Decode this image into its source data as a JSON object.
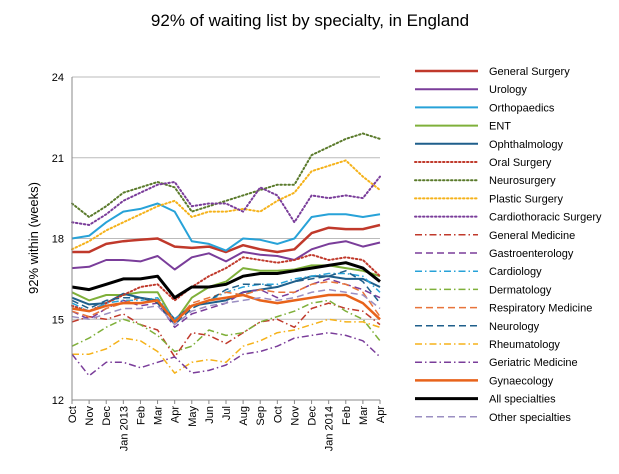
{
  "chart_data": {
    "type": "line",
    "title": "92% of waiting list by specialty, in England",
    "ylabel": "92% within (weeks)",
    "xlabel": "",
    "ylim": [
      12,
      24
    ],
    "yticks": [
      "12",
      "15",
      "18",
      "21",
      "24"
    ],
    "grid": true,
    "legend_position": "right",
    "categories": [
      "Oct",
      "Nov",
      "Dec",
      "Jan 2013",
      "Feb",
      "Mar",
      "Apr",
      "May",
      "Jun",
      "Jul",
      "Aug",
      "Sep",
      "Oct",
      "Nov",
      "Dec",
      "Jan 2014",
      "Feb",
      "Mar",
      "Apr"
    ],
    "series": [
      {
        "name": "General Surgery",
        "color": "#c0392b",
        "dash": "solid",
        "width": 2.5,
        "values": [
          17.5,
          17.5,
          17.8,
          17.9,
          17.95,
          18.0,
          17.7,
          17.65,
          17.7,
          17.5,
          17.75,
          17.6,
          17.5,
          17.6,
          18.2,
          18.4,
          18.35,
          18.35,
          18.5
        ]
      },
      {
        "name": "Urology",
        "color": "#7a3d9a",
        "dash": "solid",
        "width": 2,
        "values": [
          16.9,
          16.95,
          17.2,
          17.2,
          17.15,
          17.35,
          16.85,
          17.3,
          17.45,
          17.15,
          17.5,
          17.4,
          17.35,
          17.2,
          17.6,
          17.8,
          17.9,
          17.7,
          17.85
        ]
      },
      {
        "name": "Orthopaedics",
        "color": "#27a2d8",
        "dash": "solid",
        "width": 2,
        "values": [
          18.0,
          18.1,
          18.6,
          19.0,
          19.1,
          19.3,
          19.0,
          17.9,
          17.8,
          17.55,
          18.0,
          17.95,
          17.8,
          18.0,
          18.8,
          18.9,
          18.9,
          18.8,
          18.9
        ]
      },
      {
        "name": "ENT",
        "color": "#7fb03a",
        "dash": "solid",
        "width": 2,
        "values": [
          16.0,
          15.7,
          15.9,
          15.9,
          16.0,
          16.0,
          14.9,
          15.8,
          16.2,
          16.4,
          16.9,
          16.8,
          16.8,
          16.85,
          17.0,
          17.0,
          16.9,
          16.8,
          16.6
        ]
      },
      {
        "name": "Ophthalmology",
        "color": "#1f5f8b",
        "dash": "solid",
        "width": 2,
        "values": [
          15.8,
          15.55,
          15.6,
          15.95,
          15.8,
          15.7,
          15.0,
          15.5,
          15.6,
          15.7,
          16.0,
          16.1,
          16.2,
          16.4,
          16.6,
          16.6,
          16.5,
          16.5,
          16.2
        ]
      },
      {
        "name": "Oral Surgery",
        "color": "#c0392b",
        "dash": "dot",
        "width": 2,
        "values": [
          15.5,
          15.3,
          15.6,
          15.9,
          16.2,
          16.3,
          15.7,
          16.2,
          16.6,
          16.9,
          17.3,
          17.2,
          17.1,
          17.2,
          17.4,
          17.2,
          17.3,
          17.2,
          16.6
        ]
      },
      {
        "name": "Neurosurgery",
        "color": "#5a7a2b",
        "dash": "dot",
        "width": 2,
        "values": [
          19.3,
          18.8,
          19.2,
          19.7,
          19.9,
          20.1,
          19.9,
          19.0,
          19.2,
          19.4,
          19.6,
          19.8,
          20.0,
          20.0,
          21.1,
          21.4,
          21.7,
          21.9,
          21.7
        ]
      },
      {
        "name": "Plastic Surgery",
        "color": "#f5b21a",
        "dash": "dot",
        "width": 2,
        "values": [
          17.6,
          17.9,
          18.3,
          18.6,
          18.9,
          19.2,
          19.4,
          18.8,
          19.0,
          19.0,
          19.1,
          19.0,
          19.4,
          19.7,
          20.5,
          20.7,
          20.9,
          20.3,
          19.8
        ]
      },
      {
        "name": "Cardiothoracic Surgery",
        "color": "#7a3d9a",
        "dash": "dot",
        "width": 2,
        "values": [
          18.6,
          18.5,
          18.9,
          19.4,
          19.7,
          20.0,
          20.1,
          19.2,
          19.3,
          19.3,
          19.0,
          19.9,
          19.6,
          18.6,
          19.6,
          19.5,
          19.6,
          19.5,
          20.3
        ]
      },
      {
        "name": "General Medicine",
        "color": "#c0392b",
        "dash": "dashdot",
        "width": 1.5,
        "values": [
          14.9,
          15.1,
          15.0,
          15.2,
          14.8,
          14.6,
          13.6,
          14.5,
          14.4,
          14.1,
          14.5,
          14.9,
          15.0,
          14.7,
          15.4,
          15.6,
          15.4,
          15.3,
          14.8
        ]
      },
      {
        "name": "Gastroenterology",
        "color": "#7a3d9a",
        "dash": "longdash",
        "width": 1.5,
        "values": [
          15.3,
          15.0,
          15.4,
          15.7,
          15.5,
          15.6,
          14.7,
          15.2,
          15.4,
          15.6,
          16.0,
          16.1,
          15.8,
          16.0,
          16.3,
          16.5,
          16.3,
          16.1,
          15.8
        ]
      },
      {
        "name": "Cardiology",
        "color": "#27a2d8",
        "dash": "dashdot",
        "width": 1.5,
        "values": [
          15.6,
          15.3,
          15.6,
          15.7,
          15.7,
          15.8,
          15.0,
          15.5,
          15.7,
          16.0,
          16.2,
          16.3,
          16.3,
          16.5,
          16.6,
          16.7,
          16.7,
          16.6,
          16.0
        ]
      },
      {
        "name": "Dermatology",
        "color": "#7fb03a",
        "dash": "dashdot",
        "width": 1.5,
        "values": [
          14.0,
          14.3,
          14.7,
          15.0,
          14.8,
          14.4,
          13.8,
          14.0,
          14.6,
          14.4,
          14.5,
          14.9,
          15.1,
          15.3,
          15.6,
          15.7,
          15.3,
          15.0,
          14.2
        ]
      },
      {
        "name": "Respiratory Medicine",
        "color": "#e8743b",
        "dash": "longdash",
        "width": 1.5,
        "values": [
          15.3,
          15.1,
          15.4,
          15.6,
          15.8,
          15.6,
          14.9,
          15.6,
          15.8,
          16.0,
          15.9,
          16.1,
          16.0,
          16.0,
          16.3,
          16.4,
          16.3,
          16.0,
          15.1
        ]
      },
      {
        "name": "Neurology",
        "color": "#1f5f8b",
        "dash": "longdash",
        "width": 1.5,
        "values": [
          15.7,
          15.4,
          15.7,
          15.8,
          15.8,
          15.6,
          14.8,
          15.4,
          15.7,
          16.1,
          16.3,
          16.3,
          16.2,
          16.4,
          16.5,
          16.6,
          16.8,
          16.4,
          15.6
        ]
      },
      {
        "name": "Rheumatology",
        "color": "#f5b21a",
        "dash": "dashdot",
        "width": 1.5,
        "values": [
          13.7,
          13.7,
          13.9,
          14.3,
          14.2,
          13.8,
          13.0,
          13.4,
          13.5,
          13.4,
          14.0,
          14.2,
          14.5,
          14.6,
          14.8,
          15.0,
          14.9,
          14.9,
          14.7
        ]
      },
      {
        "name": "Geriatric Medicine",
        "color": "#7a3d9a",
        "dash": "dashdot",
        "width": 1.5,
        "values": [
          13.7,
          12.9,
          13.4,
          13.4,
          13.2,
          13.4,
          13.6,
          13.0,
          13.1,
          13.3,
          13.7,
          13.8,
          14.0,
          14.3,
          14.4,
          14.5,
          14.4,
          14.2,
          13.6
        ]
      },
      {
        "name": "Gynaecology",
        "color": "#e8631b",
        "dash": "solid",
        "width": 2.5,
        "values": [
          15.4,
          15.3,
          15.5,
          15.6,
          15.6,
          15.7,
          14.9,
          15.5,
          15.7,
          15.8,
          15.9,
          15.7,
          15.6,
          15.7,
          15.8,
          15.9,
          15.9,
          15.6,
          15.0
        ]
      },
      {
        "name": "All specialties",
        "color": "#000000",
        "dash": "solid",
        "width": 3,
        "values": [
          16.2,
          16.1,
          16.3,
          16.5,
          16.5,
          16.6,
          15.8,
          16.2,
          16.2,
          16.3,
          16.6,
          16.7,
          16.7,
          16.8,
          16.9,
          17.0,
          17.1,
          16.9,
          16.4
        ]
      },
      {
        "name": "Other specialties",
        "color": "#9b8fc2",
        "dash": "longdash",
        "width": 1.5,
        "values": [
          15.1,
          15.0,
          15.2,
          15.4,
          15.4,
          15.5,
          14.8,
          15.3,
          15.5,
          15.6,
          15.7,
          15.8,
          15.7,
          15.8,
          16.0,
          16.1,
          16.0,
          15.9,
          15.4
        ]
      }
    ]
  }
}
